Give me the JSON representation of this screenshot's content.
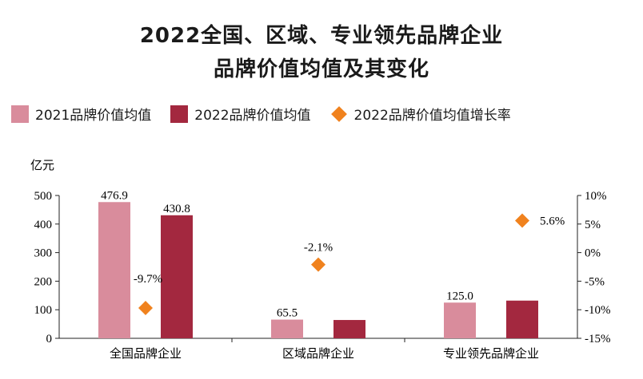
{
  "title_line1": "2022全国、区域、专业领先品牌企业",
  "title_line2": "品牌价值均值及其变化",
  "legend": [
    {
      "label": "2021品牌价值均值",
      "color": "#d98c9c",
      "shape": "square"
    },
    {
      "label": "2022品牌价值均值",
      "color": "#a3283f",
      "shape": "square"
    },
    {
      "label": "2022品牌价值均值增长率",
      "color": "#f0821e",
      "shape": "diamond"
    }
  ],
  "chart_data": {
    "type": "bar",
    "y_unit": "亿元",
    "categories": [
      "全国品牌企业",
      "区域品牌企业",
      "专业领先品牌企业"
    ],
    "series": [
      {
        "name": "2021品牌价值均值",
        "values": [
          476.9,
          65.5,
          125.0
        ],
        "labels": [
          "476.9",
          "65.5",
          "125.0"
        ],
        "color": "#d98c9c"
      },
      {
        "name": "2022品牌价值均值",
        "values": [
          430.8,
          64.1,
          132.0
        ],
        "labels": [
          "430.8",
          "",
          ""
        ],
        "color": "#a3283f"
      }
    ],
    "growth_rate": {
      "name": "2022品牌价值均值增长率",
      "values": [
        -9.7,
        -2.1,
        5.6
      ],
      "labels": [
        "-9.7%",
        "-2.1%",
        "5.6%"
      ],
      "color": "#f0821e",
      "axis": "right"
    },
    "ylim_left": [
      0,
      500
    ],
    "yticks_left": [
      "0",
      "100",
      "200",
      "300",
      "400",
      "500"
    ],
    "ylim_right": [
      -15,
      10
    ],
    "yticks_right": [
      "-15%",
      "-10%",
      "-5%",
      "0%",
      "5%",
      "10%"
    ]
  }
}
